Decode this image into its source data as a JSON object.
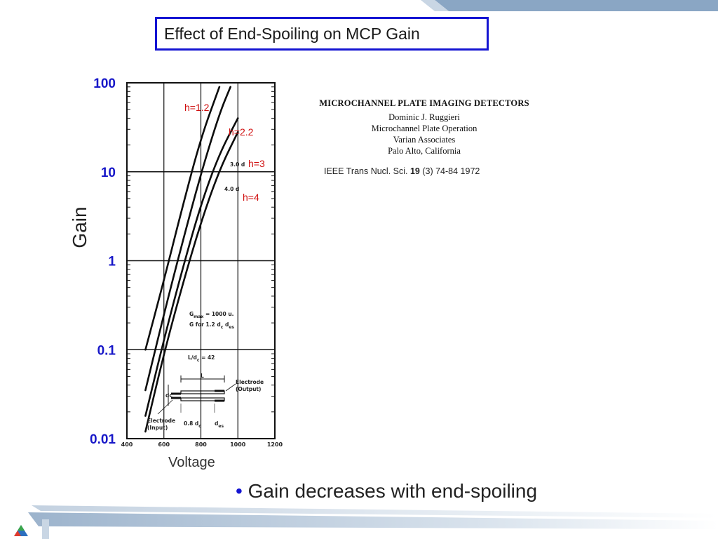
{
  "slide": {
    "title": "Effect of End-Spoiling on MCP Gain",
    "bullet": "Gain decreases with end-spoiling",
    "colors": {
      "title_border": "#1414d2",
      "tick_label": "#1717c8",
      "curve_label": "#d01010",
      "band": "#8aa6c4"
    }
  },
  "reference": {
    "heading": "MICROCHANNEL PLATE IMAGING DETECTORS",
    "author": "Dominic J. Ruggieri",
    "dept": "Microchannel Plate Operation",
    "company": "Varian Associates",
    "location": "Palo Alto, California",
    "citation_pre": "IEEE Trans Nucl. Sci. ",
    "citation_vol": "19",
    "citation_post": " (3)  74-84 1972"
  },
  "chart_data": {
    "type": "line",
    "title": "",
    "xlabel": "Voltage",
    "ylabel": "Gain",
    "xscale": "linear",
    "yscale": "log",
    "xlim": [
      400,
      1200
    ],
    "ylim": [
      0.01,
      100
    ],
    "x_tick_labels": [
      "400",
      "600",
      "800",
      "1000",
      "1200"
    ],
    "x_ticks": [
      400,
      600,
      800,
      1000,
      1200
    ],
    "y_tick_labels": [
      "100",
      "10",
      "1",
      "0.1",
      "0.01"
    ],
    "y_ticks": [
      100,
      10,
      1,
      0.1,
      0.01
    ],
    "grid": true,
    "series": [
      {
        "name": "h=1.2",
        "scan_label": "",
        "x": [
          500,
          600,
          700,
          800,
          900
        ],
        "y": [
          0.1,
          0.6,
          4.0,
          24,
          90
        ]
      },
      {
        "name": "h=2.2",
        "scan_label": "",
        "x": [
          500,
          600,
          700,
          800,
          900,
          960
        ],
        "y": [
          0.035,
          0.25,
          1.6,
          9.5,
          45,
          90
        ]
      },
      {
        "name": "h=3",
        "scan_label": "3.0 d",
        "x": [
          500,
          600,
          700,
          800,
          900,
          1000
        ],
        "y": [
          0.018,
          0.13,
          0.8,
          4.3,
          16,
          40
        ]
      },
      {
        "name": "h=4",
        "scan_label": "4.0 d",
        "x": [
          500,
          600,
          700,
          800,
          900,
          1000
        ],
        "y": [
          0.012,
          0.09,
          0.53,
          2.7,
          10.5,
          28
        ]
      }
    ],
    "annotations": {
      "gmax": "G",
      "gmax_sub": "max",
      "gmax_rest": " = 1000 u.",
      "gfor": "G for 1.2 d",
      "gfor_sub1": "c",
      "gfor_mid": "  d",
      "gfor_sub2": "es",
      "ratio": "L/d",
      "ratio_sub": "c",
      "ratio_rest": " = 42",
      "L": "L",
      "dc": "dc",
      "electrode_output_1": "Electrode",
      "electrode_output_2": "(Output)",
      "electrode_input_1": "Electrode",
      "electrode_input_2": "(Input)",
      "input_len": "0.8 d",
      "input_len_sub": "c",
      "des": "d",
      "des_sub": "es"
    }
  }
}
